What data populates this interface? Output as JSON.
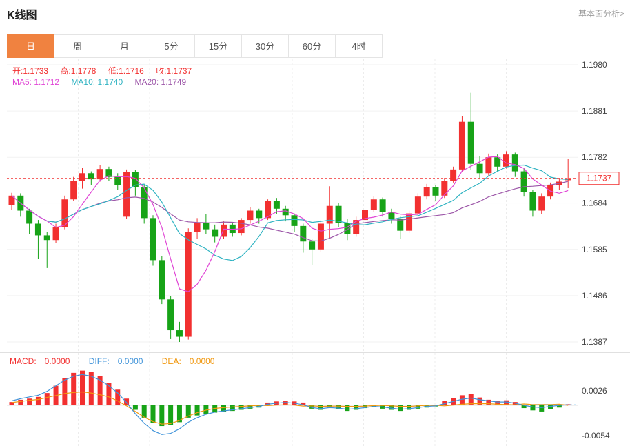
{
  "header": {
    "title": "K线图",
    "link_label": "基本面分析>"
  },
  "tabs": [
    {
      "label": "日",
      "active": true
    },
    {
      "label": "周",
      "active": false
    },
    {
      "label": "月",
      "active": false
    },
    {
      "label": "5分",
      "active": false
    },
    {
      "label": "15分",
      "active": false
    },
    {
      "label": "30分",
      "active": false
    },
    {
      "label": "60分",
      "active": false
    },
    {
      "label": "4时",
      "active": false
    }
  ],
  "ohlc": {
    "open_label": "开:",
    "open_value": "1.1733",
    "high_label": "高:",
    "high_value": "1.1778",
    "low_label": "低:",
    "low_value": "1.1716",
    "close_label": "收:",
    "close_value": "1.1737"
  },
  "ma": {
    "ma5_label": "MA5:",
    "ma5_value": "1.1712",
    "ma10_label": "MA10:",
    "ma10_value": "1.1740",
    "ma20_label": "MA20:",
    "ma20_value": "1.1749"
  },
  "macd_info": {
    "macd_label": "MACD:",
    "macd_value": "0.0000",
    "diff_label": "DIFF:",
    "diff_value": "0.0000",
    "dea_label": "DEA:",
    "dea_value": "0.0000"
  },
  "colors": {
    "up": "#f23030",
    "down": "#17a317",
    "ma5": "#e045d5",
    "ma10": "#2fb3c2",
    "ma20": "#9c56a8",
    "diff": "#3f93d9",
    "dea": "#f1980f",
    "accent_tab": "#f08240",
    "price_line": "#f23030",
    "axis_text": "#444444",
    "current_line": "#54b0e8"
  },
  "chart_data": {
    "type": "candlestick",
    "title": "K线图",
    "period_selected": "日",
    "price_axis": {
      "ticks": [
        "1.1980",
        "1.1881",
        "1.1782",
        "1.1684",
        "1.1585",
        "1.1486",
        "1.1387"
      ],
      "max": 1.198,
      "min": 1.1387
    },
    "current_price": "1.1737",
    "ohlc_current": {
      "open": 1.1733,
      "high": 1.1778,
      "low": 1.1716,
      "close": 1.1737
    },
    "ma_current": {
      "ma5": 1.1712,
      "ma10": 1.174,
      "ma20": 1.1749
    },
    "candles": [
      [
        1.168,
        1.1706,
        1.167,
        1.17
      ],
      [
        1.17,
        1.1705,
        1.1655,
        1.1668
      ],
      [
        1.1668,
        1.1672,
        1.1618,
        1.164
      ],
      [
        1.164,
        1.1648,
        1.1565,
        1.1615
      ],
      [
        1.1615,
        1.1622,
        1.1545,
        1.1605
      ],
      [
        1.1605,
        1.164,
        1.1598,
        1.1632
      ],
      [
        1.1632,
        1.17,
        1.1628,
        1.1692
      ],
      [
        1.1692,
        1.174,
        1.1688,
        1.1732
      ],
      [
        1.1732,
        1.176,
        1.1715,
        1.1748
      ],
      [
        1.1748,
        1.1752,
        1.1722,
        1.1735
      ],
      [
        1.1735,
        1.1765,
        1.173,
        1.1757
      ],
      [
        1.1757,
        1.1762,
        1.1732,
        1.174
      ],
      [
        1.174,
        1.1748,
        1.1712,
        1.1722
      ],
      [
        1.1655,
        1.1756,
        1.165,
        1.175
      ],
      [
        1.175,
        1.1755,
        1.17,
        1.1718
      ],
      [
        1.1718,
        1.1722,
        1.164,
        1.1652
      ],
      [
        1.1652,
        1.1658,
        1.155,
        1.1562
      ],
      [
        1.1562,
        1.157,
        1.1468,
        1.1478
      ],
      [
        1.1478,
        1.1485,
        1.1393,
        1.1412
      ],
      [
        1.1412,
        1.143,
        1.1387,
        1.1398
      ],
      [
        1.1398,
        1.163,
        1.1392,
        1.1622
      ],
      [
        1.1622,
        1.1652,
        1.1608,
        1.1642
      ],
      [
        1.1642,
        1.166,
        1.1618,
        1.1628
      ],
      [
        1.1628,
        1.1638,
        1.16,
        1.1612
      ],
      [
        1.1612,
        1.1645,
        1.1608,
        1.1638
      ],
      [
        1.1638,
        1.1642,
        1.1612,
        1.162
      ],
      [
        1.162,
        1.1652,
        1.1615,
        1.1648
      ],
      [
        1.1648,
        1.1675,
        1.164,
        1.1668
      ],
      [
        1.1668,
        1.1672,
        1.164,
        1.1652
      ],
      [
        1.1652,
        1.1692,
        1.1648,
        1.1688
      ],
      [
        1.1688,
        1.1695,
        1.166,
        1.1672
      ],
      [
        1.1672,
        1.1678,
        1.1645,
        1.1658
      ],
      [
        1.1658,
        1.1662,
        1.1622,
        1.1635
      ],
      [
        1.1635,
        1.164,
        1.1578,
        1.1602
      ],
      [
        1.1602,
        1.1608,
        1.1552,
        1.1585
      ],
      [
        1.1585,
        1.1648,
        1.158,
        1.164
      ],
      [
        1.164,
        1.172,
        1.1608,
        1.1678
      ],
      [
        1.1678,
        1.1685,
        1.1632,
        1.1642
      ],
      [
        1.1642,
        1.165,
        1.1605,
        1.1618
      ],
      [
        1.1618,
        1.1655,
        1.1612,
        1.1648
      ],
      [
        1.1648,
        1.1678,
        1.1642,
        1.167
      ],
      [
        1.167,
        1.1698,
        1.1665,
        1.1692
      ],
      [
        1.1692,
        1.1696,
        1.1655,
        1.1665
      ],
      [
        1.1665,
        1.1672,
        1.164,
        1.165
      ],
      [
        1.165,
        1.1655,
        1.1608,
        1.1625
      ],
      [
        1.1625,
        1.1668,
        1.162,
        1.1662
      ],
      [
        1.1662,
        1.1705,
        1.1658,
        1.1698
      ],
      [
        1.1698,
        1.1725,
        1.1692,
        1.1718
      ],
      [
        1.1718,
        1.1722,
        1.1688,
        1.17
      ],
      [
        1.17,
        1.1738,
        1.1695,
        1.1732
      ],
      [
        1.1732,
        1.1762,
        1.1728,
        1.1756
      ],
      [
        1.1756,
        1.187,
        1.175,
        1.1858
      ],
      [
        1.1858,
        1.192,
        1.1755,
        1.1768
      ],
      [
        1.1768,
        1.1785,
        1.1735,
        1.1748
      ],
      [
        1.1748,
        1.179,
        1.1742,
        1.1782
      ],
      [
        1.1782,
        1.1788,
        1.1752,
        1.1762
      ],
      [
        1.1762,
        1.1795,
        1.1758,
        1.1788
      ],
      [
        1.1788,
        1.1792,
        1.174,
        1.1752
      ],
      [
        1.1752,
        1.1758,
        1.1698,
        1.1708
      ],
      [
        1.1708,
        1.1712,
        1.1655,
        1.1668
      ],
      [
        1.1668,
        1.1705,
        1.166,
        1.1698
      ],
      [
        1.1698,
        1.1728,
        1.1692,
        1.1722
      ],
      [
        1.1722,
        1.1738,
        1.1712,
        1.173
      ],
      [
        1.1733,
        1.1778,
        1.1716,
        1.1737
      ]
    ],
    "macd": {
      "axis_ticks": [
        "0.0026",
        "-0.0054"
      ],
      "current": {
        "macd": 0.0,
        "diff": 0.0,
        "dea": 0.0
      },
      "histogram": [
        0.0006,
        0.001,
        0.0012,
        0.0015,
        0.0022,
        0.0035,
        0.0048,
        0.0058,
        0.0062,
        0.006,
        0.0052,
        0.004,
        0.0028,
        0.0012,
        -0.0008,
        -0.0022,
        -0.0032,
        -0.0037,
        -0.0035,
        -0.003,
        -0.0022,
        -0.0018,
        -0.0015,
        -0.0013,
        -0.0012,
        -0.001,
        -0.0008,
        -0.0006,
        -0.0004,
        0.0005,
        0.0007,
        0.0008,
        0.0007,
        0.0005,
        -0.0006,
        -0.0008,
        -0.0005,
        -0.0007,
        -0.001,
        -0.0008,
        -0.0005,
        -0.0003,
        -0.0006,
        -0.0008,
        -0.001,
        -0.0008,
        -0.0006,
        -0.0004,
        -0.0002,
        0.0008,
        0.0013,
        0.0018,
        0.002,
        0.0014,
        0.001,
        0.0008,
        0.0009,
        0.0006,
        -0.0005,
        -0.0009,
        -0.0011,
        -0.0007,
        -0.0004,
        0.0002
      ],
      "diff": [
        0.0008,
        0.0012,
        0.0015,
        0.0018,
        0.0025,
        0.0035,
        0.0045,
        0.0052,
        0.0055,
        0.0052,
        0.0045,
        0.0035,
        0.0022,
        0.0005,
        -0.0015,
        -0.0032,
        -0.0045,
        -0.0052,
        -0.005,
        -0.0042,
        -0.003,
        -0.0022,
        -0.0016,
        -0.0012,
        -0.001,
        -0.0008,
        -0.0006,
        -0.0004,
        -0.0002,
        0.0002,
        0.0004,
        0.0005,
        0.0004,
        0.0001,
        -0.0004,
        -0.0006,
        -0.0004,
        -0.0005,
        -0.0007,
        -0.0006,
        -0.0004,
        -0.0002,
        -0.0003,
        -0.0005,
        -0.0007,
        -0.0006,
        -0.0004,
        -0.0002,
        -0.0001,
        0.0003,
        0.0007,
        0.0011,
        0.0013,
        0.001,
        0.0008,
        0.0006,
        0.0006,
        0.0004,
        0.0,
        -0.0003,
        -0.0004,
        -0.0002,
        0.0,
        0.0001
      ]
    }
  }
}
